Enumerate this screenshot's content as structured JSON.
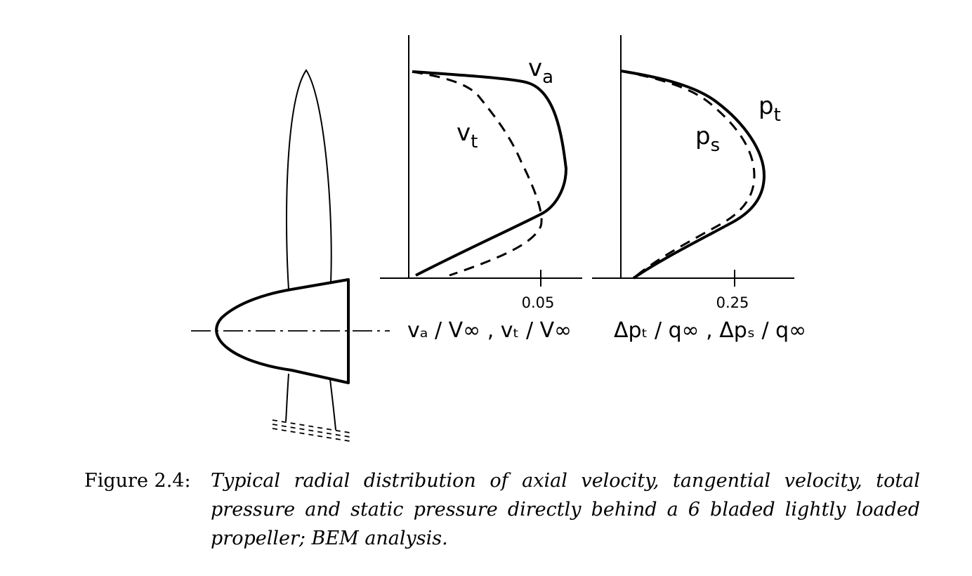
{
  "figure": {
    "left_panel": {
      "curve_labels": {
        "va": "v",
        "va_sub": "a",
        "vt": "v",
        "vt_sub": "t"
      },
      "tick_label": "0.05",
      "axis_title": "vₐ / V∞ , vₜ / V∞"
    },
    "right_panel": {
      "curve_labels": {
        "pt": "p",
        "pt_sub": "t",
        "ps": "p",
        "ps_sub": "s"
      },
      "tick_label": "0.25",
      "axis_title": "Δpₜ / q∞ , Δpₛ / q∞"
    }
  },
  "chart_data": [
    {
      "type": "line",
      "title": "",
      "xlabel": "vₐ / V∞ , vₜ / V∞",
      "ylabel": "",
      "x_ticks": [
        0.05
      ],
      "y_range": [
        0,
        1
      ],
      "series": [
        {
          "name": "v_a",
          "style": "solid",
          "points": [
            [
              0.001,
              0.03
            ],
            [
              0.02,
              0.13
            ],
            [
              0.04,
              0.22
            ],
            [
              0.052,
              0.31
            ],
            [
              0.058,
              0.42
            ],
            [
              0.057,
              0.57
            ],
            [
              0.051,
              0.76
            ],
            [
              0.043,
              0.86
            ],
            [
              0.02,
              0.9
            ],
            [
              0.001,
              0.91
            ]
          ]
        },
        {
          "name": "v_t",
          "style": "dashed",
          "points": [
            [
              0.015,
              0.03
            ],
            [
              0.032,
              0.1
            ],
            [
              0.045,
              0.17
            ],
            [
              0.05,
              0.26
            ],
            [
              0.048,
              0.38
            ],
            [
              0.04,
              0.55
            ],
            [
              0.032,
              0.69
            ],
            [
              0.025,
              0.81
            ],
            [
              0.018,
              0.89
            ],
            [
              0.001,
              0.91
            ]
          ]
        }
      ]
    },
    {
      "type": "line",
      "title": "",
      "xlabel": "Δpₜ / q∞ , Δpₛ / q∞",
      "ylabel": "",
      "x_ticks": [
        0.25
      ],
      "y_range": [
        0,
        1
      ],
      "series": [
        {
          "name": "p_t",
          "style": "solid",
          "points": [
            [
              0.03,
              0.03
            ],
            [
              0.13,
              0.16
            ],
            [
              0.23,
              0.26
            ],
            [
              0.3,
              0.38
            ],
            [
              0.32,
              0.52
            ],
            [
              0.3,
              0.64
            ],
            [
              0.25,
              0.75
            ],
            [
              0.18,
              0.84
            ],
            [
              0.1,
              0.89
            ],
            [
              0.001,
              0.91
            ]
          ]
        },
        {
          "name": "p_s",
          "style": "dashed",
          "points": [
            [
              0.03,
              0.03
            ],
            [
              0.13,
              0.15
            ],
            [
              0.22,
              0.25
            ],
            [
              0.28,
              0.37
            ],
            [
              0.3,
              0.5
            ],
            [
              0.28,
              0.63
            ],
            [
              0.23,
              0.74
            ],
            [
              0.17,
              0.83
            ],
            [
              0.1,
              0.88
            ],
            [
              0.001,
              0.91
            ]
          ]
        }
      ]
    }
  ],
  "caption": {
    "label": "Figure 2.4:",
    "text": "Typical radial distribution of axial velocity, tangential velocity, total pressure and static pressure directly behind a 6 bladed lightly loaded propeller; BEM analysis."
  }
}
